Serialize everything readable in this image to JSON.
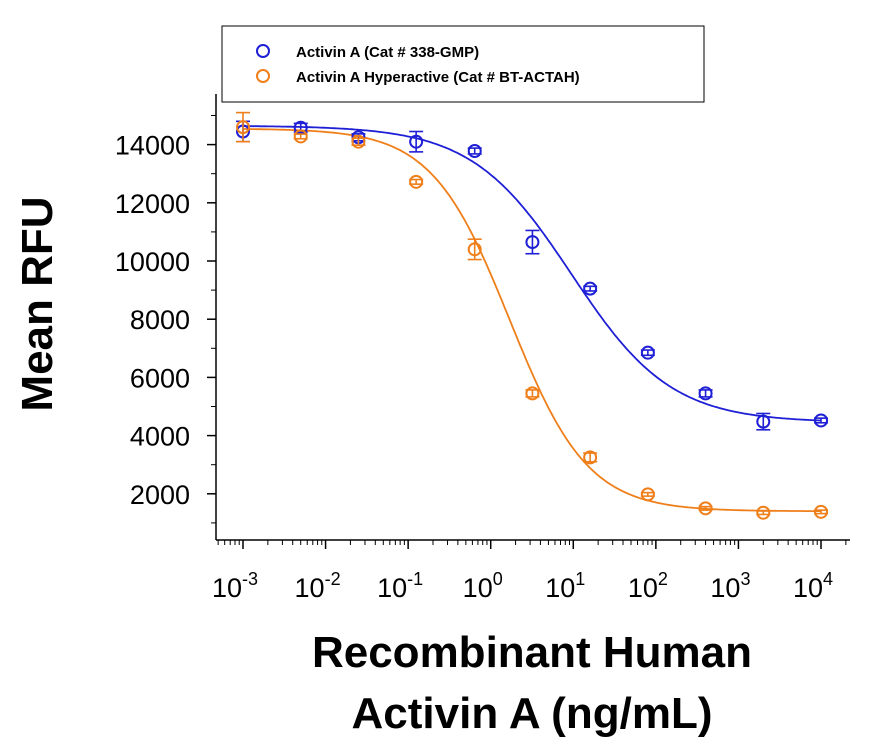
{
  "chart_data": {
    "type": "scatter",
    "xlabel": [
      "Recombinant Human",
      "Activin A (ng/mL)"
    ],
    "ylabel": "Mean RFU",
    "xscale": "log",
    "xlim": [
      0.001,
      10000
    ],
    "ylim": [
      0,
      15000
    ],
    "yticks": [
      2000,
      4000,
      6000,
      8000,
      10000,
      12000,
      14000
    ],
    "xticks": [
      {
        "value": 0.001,
        "base": "10",
        "exp": "-3"
      },
      {
        "value": 0.01,
        "base": "10",
        "exp": "-2"
      },
      {
        "value": 0.1,
        "base": "10",
        "exp": "-1"
      },
      {
        "value": 1,
        "base": "10",
        "exp": "0"
      },
      {
        "value": 10,
        "base": "10",
        "exp": "1"
      },
      {
        "value": 100,
        "base": "10",
        "exp": "2"
      },
      {
        "value": 1000,
        "base": "10",
        "exp": "3"
      },
      {
        "value": 10000,
        "base": "10",
        "exp": "4"
      }
    ],
    "legend_position": "top",
    "series": [
      {
        "name": "Activin A (Cat # 338-GMP)",
        "color": "#1f1fd6",
        "marker": "open-circle",
        "x": [
          0.001,
          0.005,
          0.025,
          0.125,
          0.64,
          3.2,
          16,
          80,
          400,
          2000,
          10000
        ],
        "y": [
          14450,
          14580,
          14250,
          14100,
          13780,
          10650,
          9050,
          6850,
          5450,
          4480,
          4520
        ],
        "err": [
          350,
          150,
          120,
          350,
          100,
          400,
          80,
          90,
          120,
          280,
          80
        ],
        "fit": {
          "top": 14650,
          "bottom": 4450,
          "ec50": 9.5,
          "hill": 0.72
        }
      },
      {
        "name": "Activin A Hyperactive (Cat # BT-ACTAH)",
        "color": "#ef7f1a",
        "marker": "open-circle",
        "x": [
          0.001,
          0.005,
          0.025,
          0.125,
          0.64,
          3.2,
          16,
          80,
          400,
          2000,
          10000
        ],
        "y": [
          14600,
          14280,
          14100,
          12720,
          10400,
          5450,
          3250,
          1980,
          1500,
          1350,
          1380
        ],
        "err": [
          500,
          80,
          120,
          80,
          350,
          120,
          150,
          60,
          60,
          60,
          60
        ],
        "fit": {
          "top": 14550,
          "bottom": 1400,
          "ec50": 1.7,
          "hill": 0.92
        }
      }
    ]
  }
}
